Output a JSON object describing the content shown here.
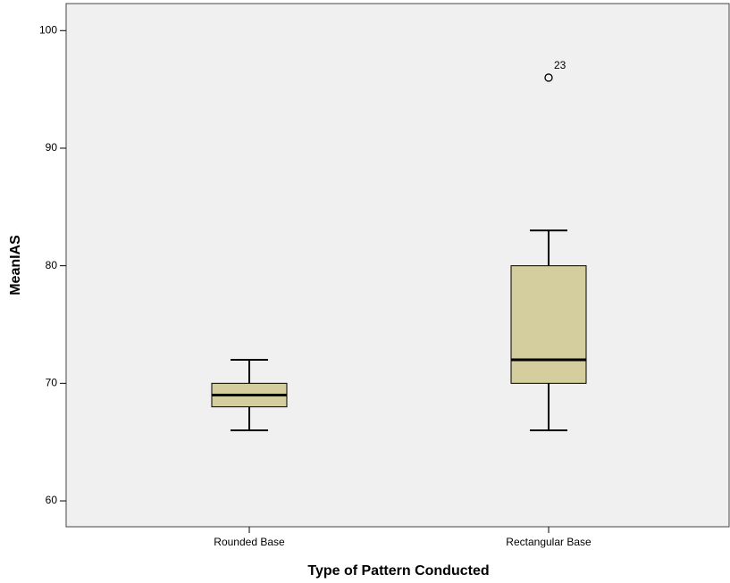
{
  "chart_data": {
    "type": "box",
    "x_label": "Type of Pattern Conducted",
    "y_label": "MeanIAS",
    "categories": [
      "Rounded Base",
      "Rectangular Base"
    ],
    "boxes": [
      {
        "min": 66,
        "q1": 68,
        "median": 69,
        "q3": 70,
        "max": 72,
        "outliers": [],
        "outlier_labels": []
      },
      {
        "min": 66,
        "q1": 70,
        "median": 72,
        "q3": 80,
        "max": 83,
        "outliers": [
          96
        ],
        "outlier_labels": [
          "23"
        ]
      }
    ],
    "color": "#d4cd9d",
    "ylim": [
      57.8,
      102.3
    ],
    "yticks": [
      60,
      70,
      80,
      90,
      100
    ]
  }
}
